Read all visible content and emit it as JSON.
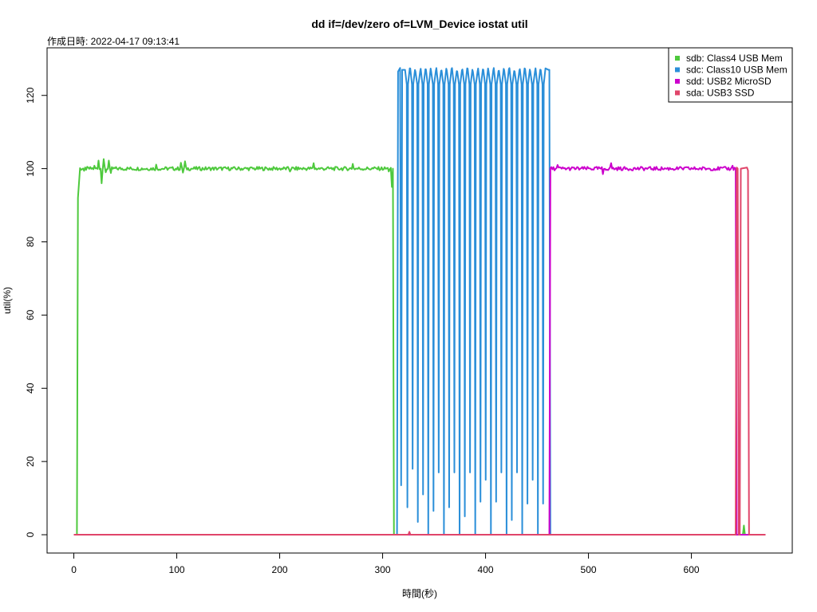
{
  "chart_data": {
    "type": "line",
    "title": "dd if=/dev/zero of=LVM_Device iostat util",
    "subtitle": "作成日時: 2022-04-17 09:13:41",
    "xlabel": "時間(秒)",
    "ylabel": "util(%)",
    "xlim": [
      -26,
      698
    ],
    "ylim": [
      -5,
      133
    ],
    "xticks": [
      0,
      100,
      200,
      300,
      400,
      500,
      600
    ],
    "yticks": [
      0,
      20,
      40,
      60,
      80,
      100,
      120
    ],
    "grid": false,
    "legend_position": "top-right",
    "series": [
      {
        "name": "sdb: Class4 USB Mem",
        "color": "#4ec93d",
        "segments": [
          {
            "type": "points",
            "points": [
              [
                0,
                0
              ],
              [
                3,
                0
              ],
              [
                4,
                92
              ],
              [
                6,
                100
              ]
            ]
          },
          {
            "type": "noise",
            "start": 6,
            "end": 308,
            "base": 100,
            "amp": 0.5,
            "spikes": [
              [
                10,
                99.4
              ],
              [
                20,
                100.8
              ],
              [
                24,
                102.2
              ],
              [
                27,
                96.0
              ],
              [
                29,
                102.6
              ],
              [
                31,
                99.0
              ],
              [
                34,
                102.2
              ],
              [
                36,
                98.8
              ],
              [
                80,
                101.1
              ],
              [
                104,
                101.6
              ],
              [
                106,
                98.9
              ],
              [
                108,
                102.0
              ],
              [
                210,
                99.2
              ],
              [
                233,
                101.5
              ],
              [
                271,
                101.3
              ],
              [
                306,
                99.2
              ]
            ]
          },
          {
            "type": "points",
            "points": [
              [
                308,
                100
              ],
              [
                309,
                95
              ],
              [
                310,
                100
              ],
              [
                311,
                0
              ],
              [
                650,
                0
              ],
              [
                651,
                2.5
              ],
              [
                652,
                0
              ],
              [
                672,
                0
              ]
            ]
          }
        ]
      },
      {
        "name": "sdc: Class10 USB Mem",
        "color": "#2b8fd9",
        "segments": [
          {
            "type": "points",
            "points": [
              [
                0,
                0
              ],
              [
                314,
                0
              ],
              [
                315,
                126.5
              ],
              [
                317,
                127.5
              ],
              [
                318,
                13.5
              ],
              [
                319,
                127
              ]
            ]
          },
          {
            "type": "cycles",
            "start": 319,
            "end": 461,
            "high": 127,
            "lows": [
              7.5,
              18,
              3.5,
              11,
              0,
              6.5,
              17,
              0,
              7.5,
              17,
              0,
              5,
              17,
              0,
              9,
              15,
              0,
              9,
              17,
              0,
              4,
              17,
              0,
              8.5,
              15,
              0,
              8.5
            ]
          },
          {
            "type": "points",
            "points": [
              [
                461,
                127
              ],
              [
                462,
                127
              ],
              [
                463,
                0
              ],
              [
                672,
                0
              ]
            ]
          }
        ]
      },
      {
        "name": "sdd: USB2 MicroSD",
        "color": "#cc00cc",
        "segments": [
          {
            "type": "points",
            "points": [
              [
                0,
                0
              ],
              [
                462,
                0
              ],
              [
                463,
                100
              ]
            ]
          },
          {
            "type": "noise",
            "start": 463,
            "end": 643,
            "base": 100,
            "amp": 0.5,
            "spikes": [
              [
                470,
                101.0
              ],
              [
                514,
                98.5
              ],
              [
                522,
                101.5
              ],
              [
                640,
                100.8
              ]
            ]
          },
          {
            "type": "points",
            "points": [
              [
                643,
                100
              ],
              [
                644,
                0
              ],
              [
                672,
                0
              ]
            ]
          }
        ]
      },
      {
        "name": "sda: USB3 SSD",
        "color": "#e0456a",
        "segments": [
          {
            "type": "points",
            "points": [
              [
                0,
                0
              ],
              [
                325,
                0
              ],
              [
                326,
                0.8
              ],
              [
                327,
                0
              ],
              [
                643,
                0
              ],
              [
                644,
                100.3
              ],
              [
                645,
                100
              ],
              [
                646,
                0
              ],
              [
                647,
                0
              ],
              [
                648,
                100
              ],
              [
                654,
                100.3
              ],
              [
                655,
                99.5
              ],
              [
                656,
                0
              ],
              [
                672,
                0
              ]
            ]
          }
        ]
      }
    ]
  }
}
